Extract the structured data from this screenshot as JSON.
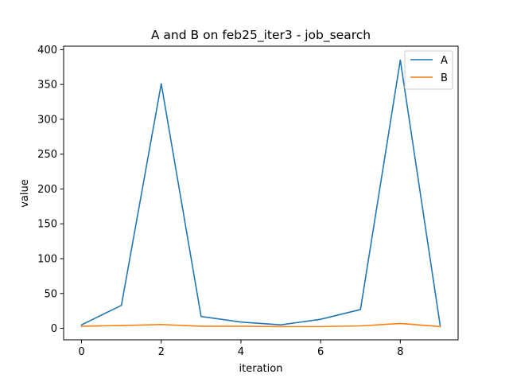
{
  "chart_data": {
    "type": "line",
    "title": "A and B on feb25_iter3 - job_search",
    "xlabel": "iteration",
    "ylabel": "value",
    "x": [
      0,
      1,
      2,
      3,
      4,
      5,
      6,
      7,
      8,
      9
    ],
    "xticks": [
      0,
      2,
      4,
      6,
      8
    ],
    "yticks": [
      0,
      50,
      100,
      150,
      200,
      250,
      300,
      350,
      400
    ],
    "xlim": [
      -0.45,
      9.45
    ],
    "ylim": [
      -16.5,
      405
    ],
    "grid": false,
    "legend_position": "top-right",
    "series": [
      {
        "name": "A",
        "color": "#1f77b4",
        "values": [
          5,
          33,
          351,
          17,
          9,
          5,
          13,
          27,
          385,
          4
        ]
      },
      {
        "name": "B",
        "color": "#ff7f0e",
        "values": [
          3,
          4,
          5.5,
          3,
          3,
          2.5,
          2.5,
          3.5,
          7,
          2.5
        ]
      }
    ]
  }
}
